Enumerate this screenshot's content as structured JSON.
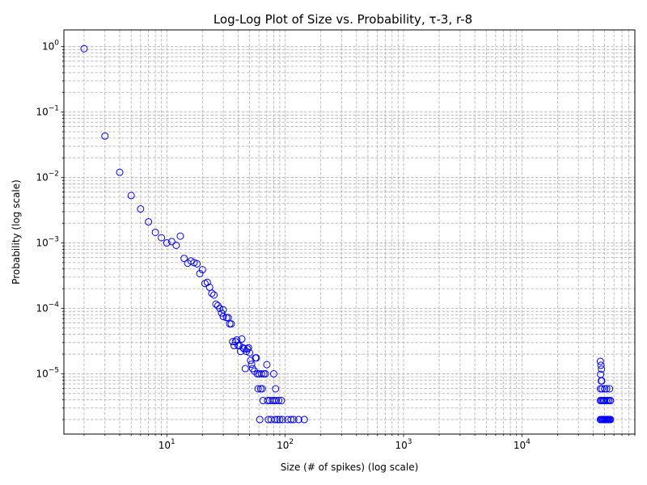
{
  "chart_data": {
    "type": "scatter",
    "title": "Log-Log Plot of Size vs. Probability, τ-3, r-8",
    "xlabel": "Size (# of spikes) (log scale)",
    "ylabel": "Probability (log scale)",
    "xscale": "log",
    "yscale": "log",
    "xlim": [
      1.35,
      90000
    ],
    "ylim": [
      1.2e-06,
      1.8
    ],
    "grid": "both, dashed, major and minor",
    "marker": "hollow circle",
    "marker_color": "#0000ff",
    "x_ticks": [
      {
        "value": 10,
        "base": "10",
        "exp": "1"
      },
      {
        "value": 100,
        "base": "10",
        "exp": "2"
      },
      {
        "value": 1000,
        "base": "10",
        "exp": "3"
      },
      {
        "value": 10000,
        "base": "10",
        "exp": "4"
      }
    ],
    "y_ticks": [
      {
        "value": 1,
        "base": "10",
        "exp": "0"
      },
      {
        "value": 0.1,
        "base": "10",
        "exp": "−1"
      },
      {
        "value": 0.01,
        "base": "10",
        "exp": "−2"
      },
      {
        "value": 0.001,
        "base": "10",
        "exp": "−3"
      },
      {
        "value": 0.0001,
        "base": "10",
        "exp": "−4"
      },
      {
        "value": 1e-05,
        "base": "10",
        "exp": "−5"
      }
    ],
    "points": [
      [
        2,
        0.93
      ],
      [
        3,
        0.043
      ],
      [
        4,
        0.012
      ],
      [
        5,
        0.0053
      ],
      [
        6,
        0.0033
      ],
      [
        7,
        0.0021
      ],
      [
        8,
        0.00145
      ],
      [
        9,
        0.0012
      ],
      [
        10,
        0.001
      ],
      [
        11,
        0.00105
      ],
      [
        12,
        0.00092
      ],
      [
        13,
        0.00127
      ],
      [
        14,
        0.00058
      ],
      [
        15,
        0.00049
      ],
      [
        16,
        0.00053
      ],
      [
        17,
        0.0005
      ],
      [
        18,
        0.00048
      ],
      [
        19,
        0.00034
      ],
      [
        20,
        0.00039
      ],
      [
        21,
        0.00024
      ],
      [
        22,
        0.00025
      ],
      [
        23,
        0.00021
      ],
      [
        24,
        0.00017
      ],
      [
        25,
        0.00016
      ],
      [
        26,
        0.000116
      ],
      [
        27,
        0.00011
      ],
      [
        28,
        0.0001
      ],
      [
        29,
        8.5e-05
      ],
      [
        30,
        9.5e-05
      ],
      [
        30,
        7.5e-05
      ],
      [
        32,
        7.2e-05
      ],
      [
        33,
        7.2e-05
      ],
      [
        34,
        5.8e-05
      ],
      [
        35,
        5.8e-05
      ],
      [
        36,
        3.1e-05
      ],
      [
        37,
        2.7e-05
      ],
      [
        38,
        3.1e-05
      ],
      [
        39,
        3.3e-05
      ],
      [
        40,
        2.7e-05
      ],
      [
        41,
        2.7e-05
      ],
      [
        42,
        2.2e-05
      ],
      [
        43,
        3.4e-05
      ],
      [
        44,
        2.5e-05
      ],
      [
        45,
        2.4e-05
      ],
      [
        46,
        1.2e-05
      ],
      [
        47,
        2.2e-05
      ],
      [
        48,
        2.4e-05
      ],
      [
        49,
        2.5e-05
      ],
      [
        50,
        2.1e-05
      ],
      [
        51,
        1.6e-05
      ],
      [
        52,
        1.4e-05
      ],
      [
        53,
        1.2e-05
      ],
      [
        55,
        1.1e-05
      ],
      [
        56,
        1.75e-05
      ],
      [
        57,
        1.75e-05
      ],
      [
        58,
        1e-05
      ],
      [
        59,
        5.9e-06
      ],
      [
        60,
        1e-05
      ],
      [
        61,
        2e-06
      ],
      [
        62,
        5.9e-06
      ],
      [
        63,
        1e-05
      ],
      [
        64,
        5.9e-06
      ],
      [
        65,
        3.9e-06
      ],
      [
        66,
        1e-05
      ],
      [
        68,
        1e-05
      ],
      [
        70,
        1.38e-05
      ],
      [
        71,
        3.9e-06
      ],
      [
        72,
        2e-06
      ],
      [
        74,
        3.9e-06
      ],
      [
        76,
        2e-06
      ],
      [
        78,
        3.9e-06
      ],
      [
        80,
        1e-05
      ],
      [
        81,
        3.9e-06
      ],
      [
        82,
        2e-06
      ],
      [
        83,
        5.9e-06
      ],
      [
        84,
        3.9e-06
      ],
      [
        86,
        2e-06
      ],
      [
        88,
        3.9e-06
      ],
      [
        90,
        2e-06
      ],
      [
        93,
        3.9e-06
      ],
      [
        95,
        2e-06
      ],
      [
        105,
        2e-06
      ],
      [
        112,
        2e-06
      ],
      [
        118,
        2e-06
      ],
      [
        130,
        2e-06
      ],
      [
        145,
        2e-06
      ],
      [
        46000,
        1.55e-05
      ],
      [
        46500,
        1.35e-05
      ],
      [
        47000,
        1.18e-05
      ],
      [
        46200,
        9.8e-06
      ],
      [
        46800,
        7.8e-06
      ],
      [
        47200,
        7.8e-06
      ],
      [
        46000,
        5.9e-06
      ],
      [
        47500,
        5.9e-06
      ],
      [
        50000,
        5.9e-06
      ],
      [
        52000,
        5.9e-06
      ],
      [
        55000,
        5.9e-06
      ],
      [
        46000,
        3.9e-06
      ],
      [
        47000,
        3.9e-06
      ],
      [
        48000,
        3.9e-06
      ],
      [
        49000,
        3.9e-06
      ],
      [
        50000,
        3.9e-06
      ],
      [
        51500,
        3.9e-06
      ],
      [
        53000,
        3.9e-06
      ],
      [
        54500,
        3.9e-06
      ],
      [
        56000,
        3.9e-06
      ],
      [
        46000,
        2e-06
      ],
      [
        46800,
        2e-06
      ],
      [
        47600,
        2e-06
      ],
      [
        48400,
        2e-06
      ],
      [
        49200,
        2e-06
      ],
      [
        50000,
        2e-06
      ],
      [
        50800,
        2e-06
      ],
      [
        51600,
        2e-06
      ],
      [
        52400,
        2e-06
      ],
      [
        53200,
        2e-06
      ],
      [
        54000,
        2e-06
      ],
      [
        55000,
        2e-06
      ],
      [
        56000,
        2e-06
      ]
    ]
  }
}
